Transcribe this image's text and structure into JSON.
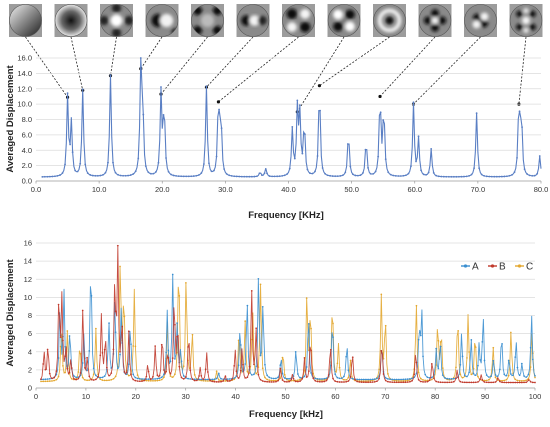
{
  "chart_data": [
    {
      "type": "line",
      "xlabel": "Frequency [KHz]",
      "ylabel": "Averaged Displacement",
      "xlim": [
        0,
        80
      ],
      "ylim": [
        0,
        16
      ],
      "x_ticks": [
        "0.0",
        "10.0",
        "20.0",
        "30.0",
        "40.0",
        "50.0",
        "60.0",
        "70.0",
        "80.0"
      ],
      "y_ticks": [
        "0.0",
        "2.0",
        "4.0",
        "6.0",
        "8.0",
        "10.0",
        "12.0",
        "14.0",
        "16.0"
      ],
      "grid": "horizontal",
      "colors": {
        "series": "#5a7fc4",
        "leader": "#222222"
      },
      "baseline": 0.5,
      "peaks": [
        [
          5.0,
          10.9
        ],
        [
          5.6,
          7.5
        ],
        [
          7.4,
          11.8
        ],
        [
          11.8,
          13.7
        ],
        [
          16.6,
          14.6
        ],
        [
          16.9,
          9.0
        ],
        [
          19.8,
          11.3
        ],
        [
          20.3,
          9.6
        ],
        [
          27.0,
          12.2
        ],
        [
          28.9,
          10.3
        ],
        [
          29.3,
          8.0
        ],
        [
          35.5,
          1.1
        ],
        [
          36.4,
          1.6
        ],
        [
          40.6,
          6.5
        ],
        [
          41.4,
          9.0
        ],
        [
          41.8,
          8.2
        ],
        [
          42.5,
          7.5
        ],
        [
          44.9,
          12.4
        ],
        [
          49.5,
          6.4
        ],
        [
          52.3,
          5.3
        ],
        [
          54.5,
          11.0
        ],
        [
          55.1,
          9.4
        ],
        [
          59.8,
          10.0
        ],
        [
          60.6,
          5.4
        ],
        [
          62.6,
          4.1
        ],
        [
          69.8,
          8.8
        ],
        [
          76.5,
          10.0
        ],
        [
          76.9,
          8.3
        ],
        [
          79.8,
          3.2
        ]
      ],
      "mode_images": [
        {
          "pattern": "gradient",
          "peak_x": 5.0,
          "peak_y": 10.9
        },
        {
          "pattern": "dark-core",
          "peak_x": 7.4,
          "peak_y": 11.8
        },
        {
          "pattern": "cross-light",
          "peak_x": 11.8,
          "peak_y": 13.7
        },
        {
          "pattern": "two-lobe",
          "peak_x": 16.6,
          "peak_y": 14.6
        },
        {
          "pattern": "cross-dark",
          "peak_x": 19.8,
          "peak_y": 11.3
        },
        {
          "pattern": "three-lobe",
          "peak_x": 27.0,
          "peak_y": 12.2
        },
        {
          "pattern": "diagonal",
          "peak_x": 28.9,
          "peak_y": 10.3
        },
        {
          "pattern": "four-lobe",
          "peak_x": 41.4,
          "peak_y": 9.0
        },
        {
          "pattern": "ring-core",
          "peak_x": 44.9,
          "peak_y": 12.4
        },
        {
          "pattern": "flower",
          "peak_x": 54.5,
          "peak_y": 11.0
        },
        {
          "pattern": "ring-lobe",
          "peak_x": 59.8,
          "peak_y": 10.0
        },
        {
          "pattern": "multi-lobe",
          "peak_x": 76.5,
          "peak_y": 10.0
        }
      ]
    },
    {
      "type": "line",
      "xlabel": "Frequency [kHz]",
      "ylabel": "Averaged Displacement",
      "xlim": [
        0,
        100
      ],
      "ylim": [
        0,
        16
      ],
      "x_ticks": [
        "0",
        "10",
        "20",
        "30",
        "40",
        "50",
        "60",
        "70",
        "80",
        "90",
        "100"
      ],
      "y_ticks": [
        "0",
        "2",
        "4",
        "6",
        "8",
        "10",
        "12",
        "14",
        "16"
      ],
      "grid": "horizontal",
      "legend": "top-right",
      "series": [
        {
          "name": "A",
          "color": "#3b8fd0",
          "baseline": 0.9,
          "peaks": [
            [
              4.8,
              8.8
            ],
            [
              5.6,
              10.6
            ],
            [
              6.8,
              6.4
            ],
            [
              9.6,
              5.8
            ],
            [
              11.0,
              14.6
            ],
            [
              14.6,
              7.2
            ],
            [
              15.8,
              10.2
            ],
            [
              17.1,
              9.0
            ],
            [
              18.9,
              7.3
            ],
            [
              26.3,
              8.3
            ],
            [
              27.4,
              12.1
            ],
            [
              28.3,
              6.6
            ],
            [
              29.0,
              4.1
            ],
            [
              36.6,
              1.6
            ],
            [
              40.9,
              7.0
            ],
            [
              42.3,
              9.9
            ],
            [
              44.6,
              12.3
            ],
            [
              45.5,
              9.4
            ],
            [
              49.1,
              3.5
            ],
            [
              52.1,
              4.3
            ],
            [
              54.6,
              8.4
            ],
            [
              59.4,
              7.9
            ],
            [
              62.3,
              5.1
            ],
            [
              69.3,
              5.2
            ],
            [
              76.8,
              6.7
            ],
            [
              77.3,
              8.5
            ],
            [
              80.2,
              4.1
            ],
            [
              81.0,
              5.2
            ],
            [
              85.3,
              6.2
            ],
            [
              87.2,
              5.4
            ],
            [
              88.8,
              4.7
            ],
            [
              89.6,
              8.2
            ],
            [
              91.7,
              3.1
            ],
            [
              93.3,
              6.1
            ],
            [
              94.8,
              3.3
            ],
            [
              96.2,
              5.4
            ],
            [
              97.4,
              2.6
            ],
            [
              99.3,
              8.3
            ]
          ]
        },
        {
          "name": "B",
          "color": "#c0392b",
          "baseline": 0.6,
          "peaks": [
            [
              1.6,
              4.1
            ],
            [
              2.4,
              4.7
            ],
            [
              4.6,
              10.3
            ],
            [
              5.2,
              9.8
            ],
            [
              6.0,
              4.4
            ],
            [
              7.0,
              3.1
            ],
            [
              9.4,
              8.8
            ],
            [
              10.3,
              3.2
            ],
            [
              13.1,
              7.9
            ],
            [
              13.9,
              5.6
            ],
            [
              15.8,
              11.6
            ],
            [
              16.4,
              14.5
            ],
            [
              17.2,
              7.2
            ],
            [
              18.6,
              6.0
            ],
            [
              22.4,
              2.6
            ],
            [
              23.9,
              4.5
            ],
            [
              25.3,
              5.9
            ],
            [
              26.4,
              4.1
            ],
            [
              27.7,
              10.2
            ],
            [
              28.4,
              6.9
            ],
            [
              30.6,
              6.3
            ],
            [
              32.9,
              2.2
            ],
            [
              34.2,
              3.9
            ],
            [
              37.9,
              1.3
            ],
            [
              39.9,
              4.3
            ],
            [
              41.3,
              4.4
            ],
            [
              43.2,
              11.0
            ],
            [
              44.1,
              6.3
            ],
            [
              49.0,
              2.2
            ],
            [
              51.4,
              1.5
            ],
            [
              53.8,
              3.2
            ],
            [
              55.0,
              5.8
            ],
            [
              59.0,
              5.0
            ],
            [
              63.4,
              4.0
            ],
            [
              69.3,
              5.3
            ],
            [
              76.1,
              4.3
            ],
            [
              79.4,
              3.1
            ],
            [
              84.4,
              2.0
            ],
            [
              89.2,
              1.5
            ],
            [
              92.6,
              1.2
            ],
            [
              98.8,
              1.0
            ]
          ]
        },
        {
          "name": "C",
          "color": "#e3a72f",
          "baseline": 0.7,
          "peaks": [
            [
              5.1,
              7.0
            ],
            [
              6.3,
              6.2
            ],
            [
              8.8,
              5.2
            ],
            [
              12.0,
              6.5
            ],
            [
              16.9,
              14.4
            ],
            [
              17.6,
              10.5
            ],
            [
              19.7,
              10.8
            ],
            [
              26.3,
              7.2
            ],
            [
              28.6,
              14.5
            ],
            [
              30.1,
              12.6
            ],
            [
              31.3,
              6.2
            ],
            [
              36.2,
              1.8
            ],
            [
              40.7,
              6.6
            ],
            [
              41.9,
              7.2
            ],
            [
              43.4,
              9.0
            ],
            [
              45.0,
              11.3
            ],
            [
              49.5,
              4.2
            ],
            [
              54.3,
              10.6
            ],
            [
              55.0,
              8.8
            ],
            [
              59.4,
              10.1
            ],
            [
              60.6,
              4.8
            ],
            [
              63.0,
              3.1
            ],
            [
              69.2,
              10.0
            ],
            [
              70.0,
              7.8
            ],
            [
              76.2,
              9.5
            ],
            [
              80.5,
              7.4
            ],
            [
              81.2,
              6.4
            ],
            [
              84.5,
              8.1
            ],
            [
              86.6,
              8.1
            ],
            [
              88.0,
              6.2
            ],
            [
              91.6,
              4.6
            ],
            [
              95.2,
              6.4
            ],
            [
              99.4,
              6.6
            ]
          ]
        }
      ]
    }
  ]
}
